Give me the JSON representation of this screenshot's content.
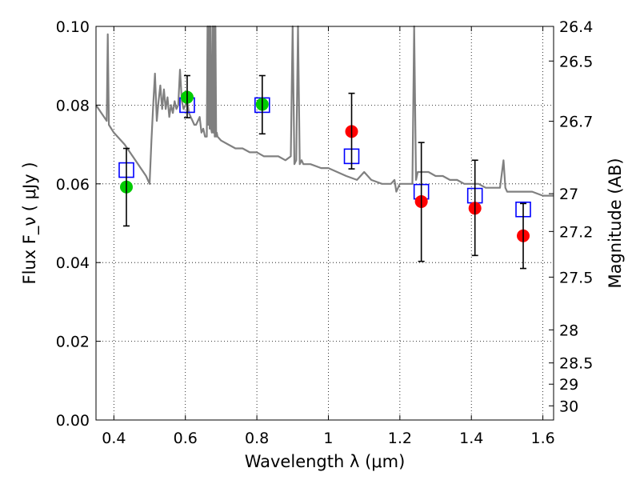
{
  "chart_data": {
    "type": "scatter",
    "xlabel": "Wavelength  λ (μm)",
    "ylabel": "Flux  F_ν  ( μJy )",
    "y2label": "Magnitude (AB)",
    "xlim": [
      0.35,
      1.63
    ],
    "ylim": [
      0.0,
      0.1
    ],
    "grid": true,
    "x_ticks": [
      0.4,
      0.6,
      0.8,
      1.0,
      1.2,
      1.4,
      1.6
    ],
    "x_tick_labels": [
      "0.4",
      "0.6",
      "0.8",
      "1",
      "1.2",
      "1.4",
      "1.6"
    ],
    "y_ticks": [
      0.0,
      0.02,
      0.04,
      0.06,
      0.08,
      0.1
    ],
    "y_tick_labels": [
      "0.00",
      "0.02",
      "0.04",
      "0.06",
      "0.08",
      "0.10"
    ],
    "y2_ticks": [
      {
        "label": "26.4",
        "flux": 0.1
      },
      {
        "label": "26.5",
        "flux": 0.0912
      },
      {
        "label": "26.7",
        "flux": 0.0759
      },
      {
        "label": "27",
        "flux": 0.0575
      },
      {
        "label": "27.2",
        "flux": 0.0479
      },
      {
        "label": "27.5",
        "flux": 0.0363
      },
      {
        "label": "28",
        "flux": 0.0229
      },
      {
        "label": "28.5",
        "flux": 0.0145
      },
      {
        "label": "29",
        "flux": 0.0091
      },
      {
        "label": "30",
        "flux": 0.0036
      }
    ],
    "series": [
      {
        "kind": "line",
        "color": "#808080",
        "x": [
          0.35,
          0.38,
          0.383,
          0.386,
          0.4,
          0.43,
          0.46,
          0.49,
          0.5,
          0.505,
          0.51,
          0.515,
          0.52,
          0.525,
          0.53,
          0.535,
          0.54,
          0.545,
          0.55,
          0.555,
          0.56,
          0.565,
          0.57,
          0.575,
          0.58,
          0.585,
          0.59,
          0.595,
          0.6,
          0.605,
          0.61,
          0.615,
          0.62,
          0.625,
          0.63,
          0.635,
          0.64,
          0.645,
          0.65,
          0.655,
          0.66,
          0.662,
          0.664,
          0.666,
          0.668,
          0.67,
          0.672,
          0.674,
          0.676,
          0.678,
          0.68,
          0.682,
          0.684,
          0.686,
          0.688,
          0.69,
          0.7,
          0.72,
          0.74,
          0.76,
          0.78,
          0.8,
          0.82,
          0.84,
          0.86,
          0.88,
          0.895,
          0.9,
          0.905,
          0.91,
          0.915,
          0.92,
          0.925,
          0.93,
          0.95,
          0.98,
          1.0,
          1.05,
          1.08,
          1.1,
          1.12,
          1.15,
          1.175,
          1.185,
          1.19,
          1.2,
          1.22,
          1.235,
          1.24,
          1.245,
          1.25,
          1.26,
          1.28,
          1.3,
          1.32,
          1.34,
          1.36,
          1.38,
          1.4,
          1.42,
          1.44,
          1.46,
          1.48,
          1.49,
          1.495,
          1.5,
          1.51,
          1.53,
          1.55,
          1.57,
          1.6,
          1.63
        ],
        "y": [
          0.08,
          0.076,
          0.098,
          0.075,
          0.073,
          0.07,
          0.066,
          0.062,
          0.06,
          0.071,
          0.08,
          0.088,
          0.076,
          0.081,
          0.085,
          0.079,
          0.084,
          0.079,
          0.082,
          0.077,
          0.08,
          0.078,
          0.081,
          0.079,
          0.08,
          0.089,
          0.081,
          0.079,
          0.08,
          0.081,
          0.078,
          0.077,
          0.076,
          0.075,
          0.075,
          0.076,
          0.077,
          0.073,
          0.074,
          0.072,
          0.072,
          0.1,
          0.075,
          0.1,
          0.074,
          0.1,
          0.074,
          0.073,
          0.1,
          0.073,
          0.1,
          0.072,
          0.1,
          0.072,
          0.073,
          0.072,
          0.071,
          0.07,
          0.069,
          0.069,
          0.068,
          0.068,
          0.067,
          0.067,
          0.067,
          0.066,
          0.067,
          0.1,
          0.065,
          0.066,
          0.1,
          0.065,
          0.066,
          0.065,
          0.065,
          0.064,
          0.064,
          0.062,
          0.061,
          0.063,
          0.061,
          0.06,
          0.06,
          0.061,
          0.058,
          0.06,
          0.06,
          0.06,
          0.1,
          0.061,
          0.063,
          0.063,
          0.063,
          0.062,
          0.062,
          0.061,
          0.061,
          0.06,
          0.06,
          0.06,
          0.059,
          0.059,
          0.059,
          0.066,
          0.059,
          0.058,
          0.058,
          0.058,
          0.058,
          0.058,
          0.057,
          0.057
        ]
      },
      {
        "kind": "open-square",
        "color": "#0000ff",
        "x": [
          0.435,
          0.605,
          0.815,
          1.065,
          1.26,
          1.41,
          1.545
        ],
        "y": [
          0.0635,
          0.08,
          0.08,
          0.067,
          0.058,
          0.057,
          0.0535
        ]
      },
      {
        "kind": "filled-circle",
        "color": "#00cc00",
        "x": [
          0.435,
          0.605,
          0.815
        ],
        "y": [
          0.0592,
          0.082,
          0.0802
        ]
      },
      {
        "kind": "filled-circle",
        "color": "#ff0000",
        "x": [
          1.065,
          1.26,
          1.41,
          1.545
        ],
        "y": [
          0.0733,
          0.0555,
          0.0538,
          0.0468
        ]
      },
      {
        "kind": "errorbar",
        "color": "#000000",
        "x": [
          0.435,
          0.605,
          0.815,
          1.065,
          1.26,
          1.41,
          1.545
        ],
        "y_low": [
          0.0493,
          0.0768,
          0.0727,
          0.0638,
          0.0403,
          0.0418,
          0.0385
        ],
        "y_high": [
          0.069,
          0.0875,
          0.0875,
          0.083,
          0.0705,
          0.066,
          0.055
        ]
      }
    ]
  }
}
